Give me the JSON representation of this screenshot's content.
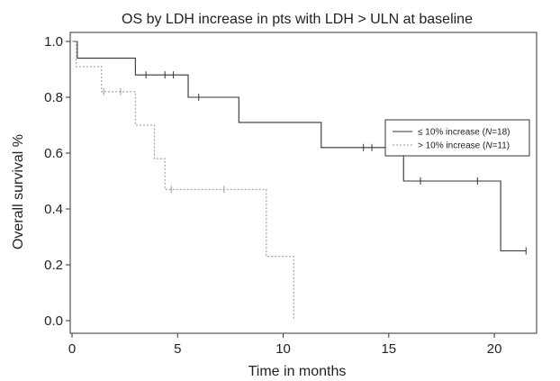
{
  "chart_data": {
    "type": "line",
    "title": "OS by LDH increase in pts with LDH > ULN at baseline",
    "xlabel": "Time in months",
    "ylabel": "Overall survival %",
    "xlim": [
      0,
      22
    ],
    "ylim": [
      0,
      1.0
    ],
    "x_ticks": [
      0,
      5,
      10,
      15,
      20
    ],
    "y_ticks": [
      0.0,
      0.2,
      0.4,
      0.6,
      0.8,
      1.0
    ],
    "y_tick_labels": [
      "0.0",
      "0.2",
      "0.4",
      "0.6",
      "0.8",
      "1.0"
    ],
    "grid": false,
    "legend_position": "top-right",
    "series": [
      {
        "name_prefix": "≤ 10% increase (",
        "name_n": "N",
        "name_suffix": "=18)",
        "style": "solid",
        "color": "#333333",
        "steps": [
          [
            0,
            1.0
          ],
          [
            0.25,
            0.94
          ],
          [
            3.0,
            0.88
          ],
          [
            5.5,
            0.8
          ],
          [
            7.9,
            0.71
          ],
          [
            11.8,
            0.62
          ],
          [
            15.7,
            0.5
          ],
          [
            20.3,
            0.25
          ]
        ],
        "end_x": 21.5,
        "censors": [
          [
            3.5,
            0.88
          ],
          [
            4.4,
            0.88
          ],
          [
            4.8,
            0.88
          ],
          [
            6.0,
            0.8
          ],
          [
            13.8,
            0.62
          ],
          [
            14.2,
            0.62
          ],
          [
            16.5,
            0.5
          ],
          [
            19.2,
            0.5
          ],
          [
            21.5,
            0.25
          ]
        ]
      },
      {
        "name_prefix": "> 10% increase (",
        "name_n": "N",
        "name_suffix": "=11)",
        "style": "dotted",
        "color": "#999999",
        "steps": [
          [
            0,
            1.0
          ],
          [
            0.2,
            0.91
          ],
          [
            1.4,
            0.82
          ],
          [
            3.0,
            0.7
          ],
          [
            3.9,
            0.58
          ],
          [
            4.4,
            0.47
          ],
          [
            9.2,
            0.23
          ],
          [
            10.5,
            0.0
          ]
        ],
        "end_x": 10.5,
        "censors": [
          [
            1.5,
            0.82
          ],
          [
            2.3,
            0.82
          ],
          [
            4.7,
            0.47
          ],
          [
            7.2,
            0.47
          ]
        ]
      }
    ]
  }
}
